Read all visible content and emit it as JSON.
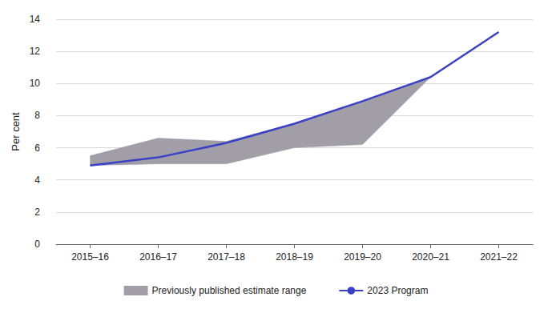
{
  "chart_data": {
    "type": "line",
    "categories": [
      "2015–16",
      "2016–17",
      "2017–18",
      "2018–19",
      "2019–20",
      "2020–21",
      "2021–22"
    ],
    "y_label": "Per cent",
    "ylim": [
      0,
      14
    ],
    "yticks": [
      0,
      2,
      4,
      6,
      8,
      10,
      12,
      14
    ],
    "grid": true,
    "legend": "bottom",
    "series": [
      {
        "name": "Previously published estimate range",
        "type": "range",
        "color": "#a29ea8",
        "lower": [
          4.9,
          5.0,
          5.0,
          6.0,
          6.2,
          10.4,
          null
        ],
        "upper": [
          5.5,
          6.6,
          6.4,
          7.5,
          8.9,
          10.4,
          null
        ]
      },
      {
        "name": "2023 Program",
        "type": "line",
        "color": "#3b41c5",
        "values": [
          4.9,
          5.4,
          6.3,
          7.5,
          8.9,
          10.4,
          13.2
        ]
      }
    ]
  }
}
